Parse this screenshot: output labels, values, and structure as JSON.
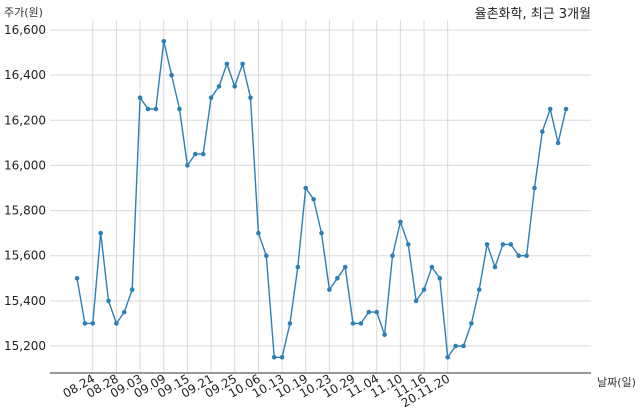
{
  "chart_data": {
    "type": "line",
    "title": "율촌화학, 최근 3개월",
    "ylabel": "주가(원)",
    "xlabel": "날짜(일)",
    "ylim": [
      15080,
      16600
    ],
    "yticks": [
      15200,
      15400,
      15600,
      15800,
      16000,
      16200,
      16400,
      16600
    ],
    "ytick_labels": [
      "15,200",
      "15,400",
      "15,600",
      "15,800",
      "16,000",
      "16,200",
      "16,400",
      "16,600"
    ],
    "xtick_labels": [
      "08.24",
      "08.28",
      "09.03",
      "09.09",
      "09.15",
      "09.21",
      "09.25",
      "10.06",
      "10.13",
      "10.19",
      "10.23",
      "10.29",
      "11.04",
      "11.10",
      "11.16",
      "20.11.20"
    ],
    "xtick_positions": [
      2,
      5,
      8,
      11,
      14,
      17,
      20,
      23,
      26,
      29,
      32,
      35,
      38,
      41,
      44,
      47
    ],
    "grid": true,
    "color": "#2e7fb5",
    "series": [
      {
        "values": [
          15500,
          15300,
          15300,
          15700,
          15400,
          15300,
          15350,
          15450,
          16300,
          16250,
          16250,
          16550,
          16400,
          16250,
          16000,
          16050,
          16050,
          16300,
          16350,
          16450,
          16350,
          16450,
          16300,
          15700,
          15600,
          15150,
          15150,
          15300,
          15550,
          15900,
          15850,
          15700,
          15450,
          15500,
          15550,
          15300,
          15300,
          15350,
          15350,
          15250,
          15600,
          15750,
          15650,
          15400,
          15450,
          15550,
          15500,
          15150,
          15200,
          15200,
          15300,
          15450,
          15650,
          15550,
          15650,
          15650,
          15600,
          15600,
          15900,
          16150,
          16250,
          16100,
          16250
        ]
      }
    ]
  }
}
